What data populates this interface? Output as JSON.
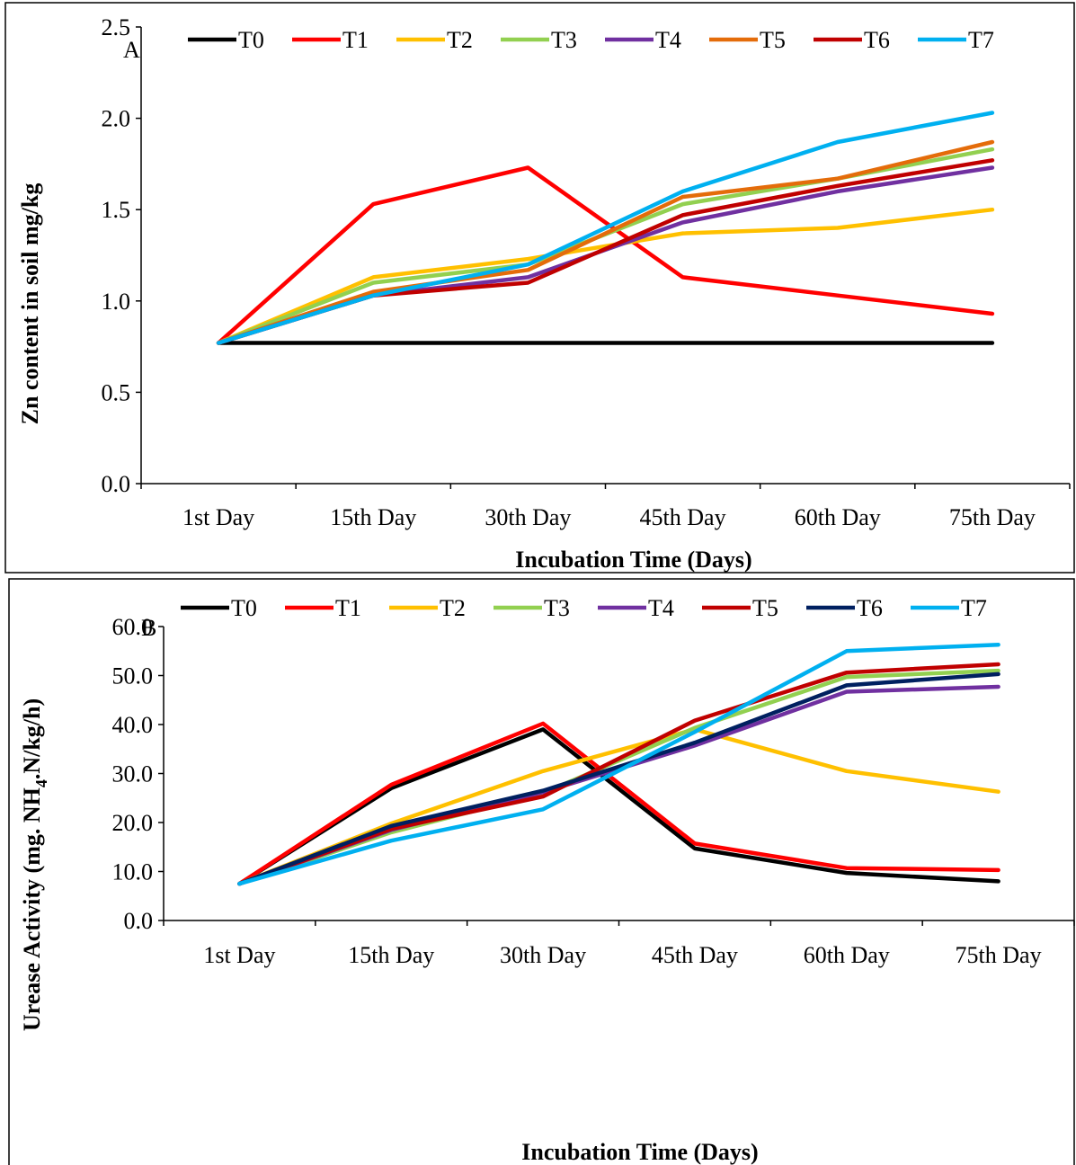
{
  "chart_data": [
    {
      "type": "line",
      "panel_label": "A",
      "categories": [
        "1st Day",
        "15th Day",
        "30th Day",
        "45th Day",
        "60th Day",
        "75th Day"
      ],
      "xlabel": "Incubation Time (Days)",
      "ylabel": "Zn content in soil mg/kg",
      "ylim": [
        0,
        2.5
      ],
      "yticks": [
        "0.0",
        "0.5",
        "1.0",
        "1.5",
        "2.0",
        "2.5"
      ],
      "legend_position": "top",
      "grid": false,
      "series": [
        {
          "name": "T0",
          "color": "#000000",
          "values": [
            0.77,
            0.77,
            0.77,
            0.77,
            0.77,
            0.77
          ]
        },
        {
          "name": "T1",
          "color": "#ff0000",
          "values": [
            0.77,
            1.53,
            1.73,
            1.13,
            1.03,
            0.93
          ]
        },
        {
          "name": "T2",
          "color": "#ffc000",
          "values": [
            0.77,
            1.13,
            1.23,
            1.37,
            1.4,
            1.5
          ]
        },
        {
          "name": "T3",
          "color": "#92d050",
          "values": [
            0.77,
            1.1,
            1.2,
            1.53,
            1.67,
            1.83
          ]
        },
        {
          "name": "T4",
          "color": "#7030a0",
          "values": [
            0.77,
            1.03,
            1.13,
            1.43,
            1.6,
            1.73
          ]
        },
        {
          "name": "T5",
          "color": "#e46c0a",
          "values": [
            0.77,
            1.05,
            1.17,
            1.57,
            1.67,
            1.87
          ]
        },
        {
          "name": "T6",
          "color": "#c00000",
          "values": [
            0.77,
            1.03,
            1.1,
            1.47,
            1.63,
            1.77
          ]
        },
        {
          "name": "T7",
          "color": "#00b0f0",
          "values": [
            0.77,
            1.03,
            1.2,
            1.6,
            1.87,
            2.03
          ]
        }
      ]
    },
    {
      "type": "line",
      "panel_label": "B",
      "categories": [
        "1st Day",
        "15th Day",
        "30th Day",
        "45th Day",
        "60th Day",
        "75th Day"
      ],
      "xlabel": "Incubation Time (Days)",
      "ylabel": "Urease Activity (mg. NH4.N/kg/h)",
      "ylabel_parts": {
        "prefix": "Urease Activity (mg. NH",
        "subscript": "4",
        "suffix": ".N/kg/h)"
      },
      "ylim": [
        0,
        60
      ],
      "yticks": [
        "0.0",
        "10.0",
        "20.0",
        "30.0",
        "40.0",
        "50.0",
        "60.0"
      ],
      "legend_position": "top",
      "grid": false,
      "series": [
        {
          "name": "T0",
          "color": "#000000",
          "values": [
            7.5,
            27.0,
            39.0,
            14.7,
            9.7,
            8.0
          ]
        },
        {
          "name": "T1",
          "color": "#ff0000",
          "values": [
            7.5,
            27.7,
            40.2,
            15.7,
            10.7,
            10.3
          ]
        },
        {
          "name": "T2",
          "color": "#ffc000",
          "values": [
            7.5,
            19.8,
            30.5,
            39.0,
            30.5,
            26.3
          ]
        },
        {
          "name": "T3",
          "color": "#92d050",
          "values": [
            7.5,
            18.0,
            26.0,
            39.3,
            49.7,
            51.0
          ]
        },
        {
          "name": "T4",
          "color": "#7030a0",
          "values": [
            7.5,
            18.5,
            26.2,
            35.7,
            46.7,
            47.7
          ]
        },
        {
          "name": "T5",
          "color": "#c00000",
          "values": [
            7.5,
            18.7,
            25.3,
            40.8,
            50.6,
            52.3
          ]
        },
        {
          "name": "T6",
          "color": "#002060",
          "values": [
            7.5,
            19.3,
            26.5,
            36.3,
            48.0,
            50.3
          ]
        },
        {
          "name": "T7",
          "color": "#00b0f0",
          "values": [
            7.5,
            16.3,
            22.7,
            38.5,
            55.0,
            56.3
          ]
        }
      ]
    }
  ]
}
